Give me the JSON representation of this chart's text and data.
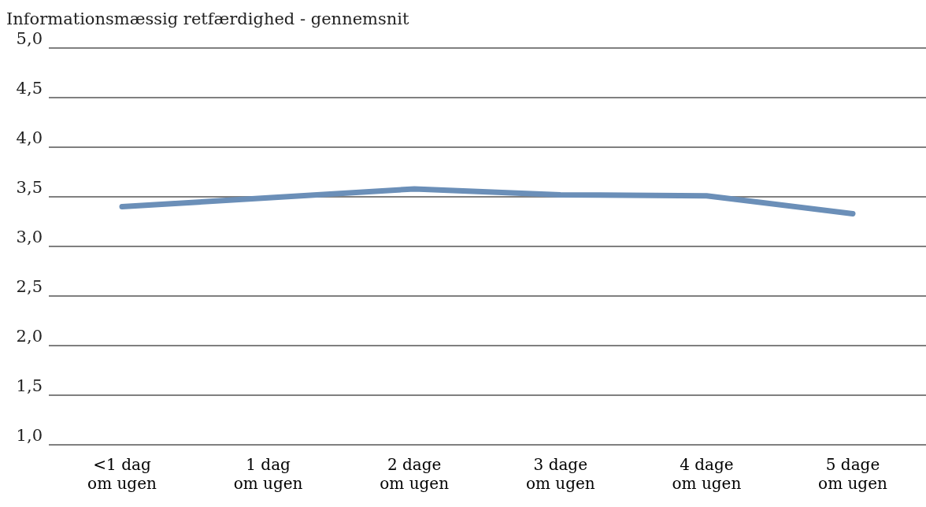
{
  "chart_data": {
    "type": "line",
    "ylabel": "Informationsmæssig retfærdighed - gennemsnit",
    "categories": [
      "<1 dag\nom ugen",
      "1 dag\nom ugen",
      "2 dage\nom ugen",
      "3 dage\nom ugen",
      "4 dage\nom ugen",
      "5 dage\nom ugen"
    ],
    "series": [
      {
        "color": "#6b8fb8",
        "values": [
          3.4,
          3.49,
          3.58,
          3.52,
          3.51,
          3.33
        ]
      }
    ],
    "ylim": [
      1,
      5
    ],
    "yticks": [
      {
        "value": 1,
        "label": "1,0"
      },
      {
        "value": 1.5,
        "label": "1,5"
      },
      {
        "value": 2,
        "label": "2,0"
      },
      {
        "value": 2.5,
        "label": "2,5"
      },
      {
        "value": 3,
        "label": "3,0"
      },
      {
        "value": 3.5,
        "label": "3,5"
      },
      {
        "value": 4,
        "label": "4,0"
      },
      {
        "value": 4.5,
        "label": "4,5"
      },
      {
        "value": 5,
        "label": "5,0"
      }
    ],
    "grid": "y",
    "legend": false,
    "marker": "none",
    "line_style": "solid"
  }
}
